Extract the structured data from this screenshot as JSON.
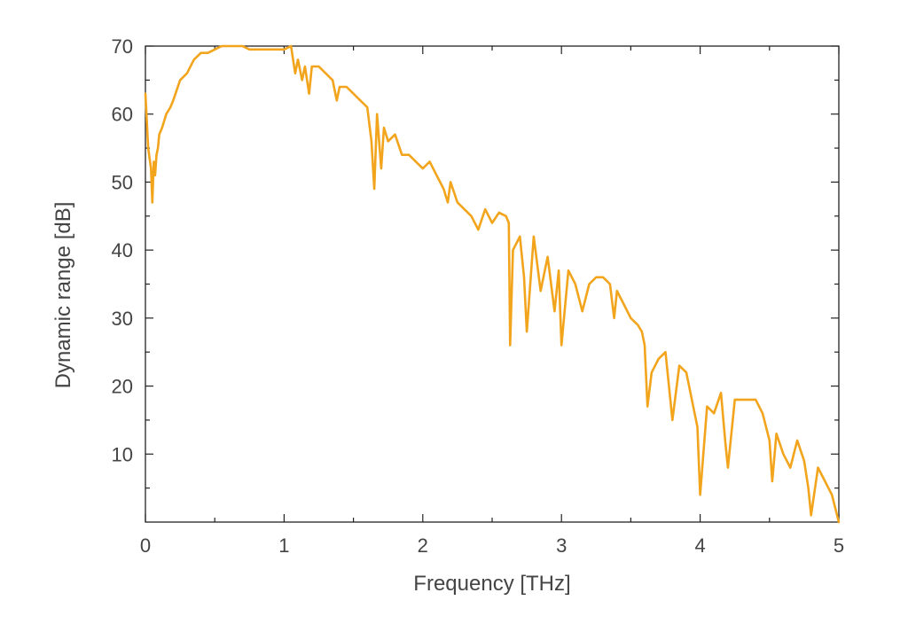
{
  "chart_data": {
    "type": "line",
    "title": "",
    "xlabel": "Frequency [THz]",
    "ylabel": "Dynamic range [dB]",
    "xlim": [
      0,
      5
    ],
    "ylim": [
      0,
      70
    ],
    "x_ticks": [
      0,
      1,
      2,
      3,
      4,
      5
    ],
    "x_tick_labels": [
      "0",
      "1",
      "2",
      "3",
      "4",
      "5"
    ],
    "x_minor_ticks": [
      0.5,
      1.5,
      2.5,
      3.5,
      4.5
    ],
    "y_ticks": [
      10,
      20,
      30,
      40,
      50,
      60,
      70
    ],
    "y_tick_labels": [
      "10",
      "20",
      "30",
      "40",
      "50",
      "60",
      "70"
    ],
    "y_minor_ticks": [
      5,
      15,
      25,
      35,
      45,
      55,
      65
    ],
    "grid": false,
    "legend": "none",
    "line_color": "#f2a51c",
    "series": [
      {
        "x": [
          0.0,
          0.02,
          0.04,
          0.05,
          0.06,
          0.07,
          0.08,
          0.09,
          0.1,
          0.12,
          0.15,
          0.18,
          0.2,
          0.25,
          0.3,
          0.35,
          0.4,
          0.45,
          0.5,
          0.55,
          0.6,
          0.65,
          0.7,
          0.75,
          0.8,
          0.85,
          0.9,
          0.95,
          1.0,
          1.05,
          1.08,
          1.1,
          1.13,
          1.15,
          1.18,
          1.2,
          1.25,
          1.3,
          1.35,
          1.38,
          1.4,
          1.45,
          1.5,
          1.55,
          1.6,
          1.63,
          1.65,
          1.67,
          1.7,
          1.72,
          1.75,
          1.8,
          1.85,
          1.9,
          1.95,
          2.0,
          2.05,
          2.1,
          2.15,
          2.18,
          2.2,
          2.25,
          2.3,
          2.35,
          2.4,
          2.45,
          2.5,
          2.55,
          2.6,
          2.62,
          2.63,
          2.65,
          2.7,
          2.73,
          2.75,
          2.8,
          2.85,
          2.9,
          2.95,
          2.98,
          3.0,
          3.05,
          3.1,
          3.15,
          3.2,
          3.25,
          3.3,
          3.35,
          3.38,
          3.4,
          3.45,
          3.5,
          3.55,
          3.58,
          3.6,
          3.62,
          3.65,
          3.7,
          3.75,
          3.78,
          3.8,
          3.85,
          3.9,
          3.95,
          3.98,
          4.0,
          4.05,
          4.1,
          4.15,
          4.18,
          4.2,
          4.25,
          4.3,
          4.35,
          4.4,
          4.45,
          4.5,
          4.52,
          4.55,
          4.6,
          4.65,
          4.7,
          4.75,
          4.78,
          4.8,
          4.85,
          4.9,
          4.95,
          5.0
        ],
        "values": [
          63,
          55,
          52,
          47,
          53,
          51,
          54,
          55,
          57,
          58,
          60,
          61,
          62,
          65,
          66,
          68,
          69,
          69,
          69.5,
          70,
          70,
          70,
          70,
          69.5,
          69.5,
          69.5,
          69.5,
          69.5,
          69.5,
          70,
          66,
          68,
          65,
          67,
          63,
          67,
          67,
          66,
          65,
          62,
          64,
          64,
          63,
          62,
          61,
          56,
          49,
          60,
          52,
          58,
          56,
          57,
          54,
          54,
          53,
          52,
          53,
          51,
          49,
          47,
          50,
          47,
          46,
          45,
          43,
          46,
          44,
          45.5,
          45,
          44,
          26,
          40,
          42,
          36,
          28,
          42,
          34,
          39,
          31,
          37,
          26,
          37,
          35,
          31,
          35,
          36,
          36,
          35,
          30,
          34,
          32,
          30,
          29,
          28,
          26,
          17,
          22,
          24,
          25,
          19,
          15,
          23,
          22,
          17,
          14,
          4,
          17,
          16,
          19,
          12,
          8,
          18,
          18,
          18,
          18,
          16,
          12,
          6,
          13,
          10,
          8,
          12,
          9,
          5,
          1,
          8,
          6,
          4,
          0
        ]
      }
    ]
  }
}
